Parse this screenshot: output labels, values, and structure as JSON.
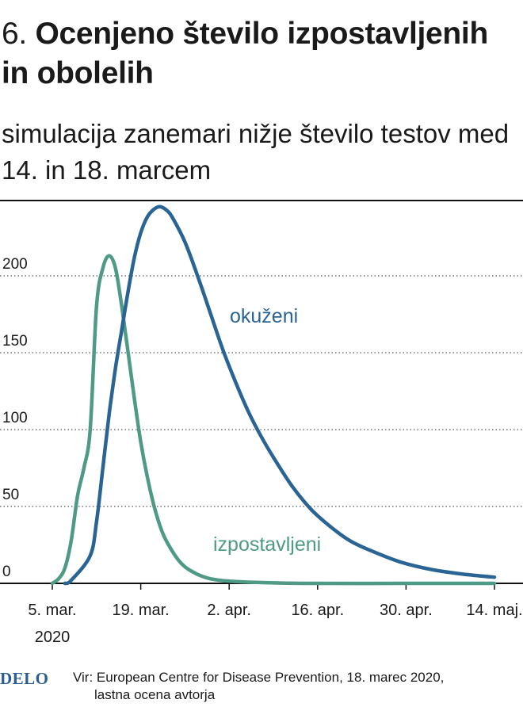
{
  "header": {
    "number": "6.",
    "title_bold": "Ocenjeno število izpostavljenih in obolelih",
    "subtitle": "simulacija zanemari nižje število testov med 14. in 18. marcem"
  },
  "footer": {
    "logo": "DELO",
    "source_line1": "Vir: European Centre for Disease Prevention, 18. marec 2020,",
    "source_line2": "lastna ocena avtorja"
  },
  "colors": {
    "okuzeni": "#2a6494",
    "izpostavljeni": "#4f9a87",
    "axis": "#111111",
    "grid": "#555555"
  },
  "chart_data": {
    "type": "line",
    "x_unit": "days since 5 Mar 2020",
    "x_ticks": [
      {
        "x": 0,
        "label": "5. mar.",
        "label2": "2020"
      },
      {
        "x": 14,
        "label": "19. mar."
      },
      {
        "x": 28,
        "label": "2. apr."
      },
      {
        "x": 42,
        "label": "16. apr."
      },
      {
        "x": 56,
        "label": "30. apr."
      },
      {
        "x": 70,
        "label": "14. maj."
      }
    ],
    "y_ticks": [
      0,
      50,
      100,
      150,
      200
    ],
    "xlim": [
      0,
      70
    ],
    "ylim": [
      0,
      250
    ],
    "grid": "horizontal dotted",
    "series": [
      {
        "name": "okuženi",
        "color": "#2a6494",
        "points": [
          [
            2,
            0
          ],
          [
            3,
            2
          ],
          [
            6,
            18
          ],
          [
            7,
            40
          ],
          [
            8,
            75
          ],
          [
            9,
            110
          ],
          [
            10,
            140
          ],
          [
            11,
            165
          ],
          [
            12,
            190
          ],
          [
            13,
            212
          ],
          [
            14,
            228
          ],
          [
            15,
            238
          ],
          [
            16,
            243
          ],
          [
            17,
            245
          ],
          [
            18,
            243
          ],
          [
            19,
            238
          ],
          [
            21,
            222
          ],
          [
            23,
            200
          ],
          [
            25,
            176
          ],
          [
            27,
            152
          ],
          [
            29,
            131
          ],
          [
            31,
            112
          ],
          [
            33,
            96
          ],
          [
            35,
            82
          ],
          [
            38,
            63
          ],
          [
            41,
            48
          ],
          [
            44,
            37
          ],
          [
            47,
            28
          ],
          [
            50,
            22
          ],
          [
            55,
            14
          ],
          [
            60,
            9
          ],
          [
            65,
            6
          ],
          [
            70,
            4
          ]
        ]
      },
      {
        "name": "izpostavljeni",
        "color": "#4f9a87",
        "points": [
          [
            0,
            0
          ],
          [
            1,
            3
          ],
          [
            2,
            10
          ],
          [
            3,
            28
          ],
          [
            4,
            57
          ],
          [
            5,
            75
          ],
          [
            6,
            100
          ],
          [
            7,
            180
          ],
          [
            8,
            205
          ],
          [
            9,
            213
          ],
          [
            10,
            205
          ],
          [
            11,
            180
          ],
          [
            12,
            150
          ],
          [
            13,
            120
          ],
          [
            14,
            92
          ],
          [
            15,
            70
          ],
          [
            16,
            52
          ],
          [
            17,
            38
          ],
          [
            18,
            28
          ],
          [
            20,
            15
          ],
          [
            22,
            8
          ],
          [
            25,
            3
          ],
          [
            30,
            1
          ],
          [
            40,
            0
          ],
          [
            55,
            0
          ],
          [
            70,
            0
          ]
        ]
      }
    ],
    "annotations": [
      {
        "text": "okuženi",
        "series": 0
      },
      {
        "text": "izpostavljeni",
        "series": 1
      }
    ]
  }
}
